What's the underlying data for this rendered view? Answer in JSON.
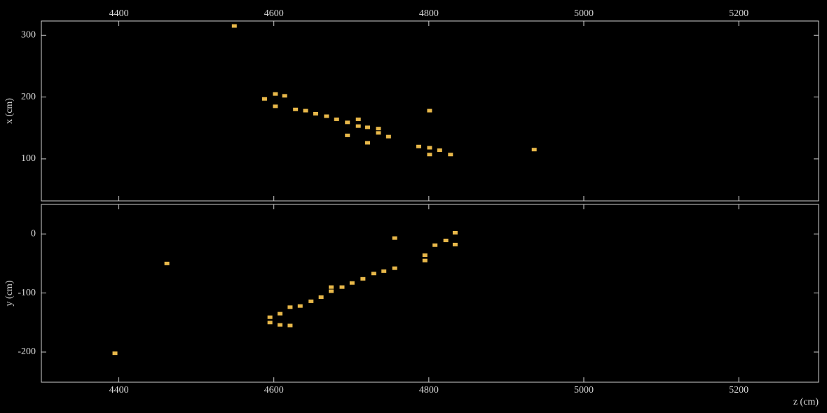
{
  "chart_data": [
    {
      "type": "scatter",
      "ylabel": "x (cm)",
      "xaxis_position": "top",
      "color": "#e8b84a",
      "x": [
        4549,
        4588,
        4602,
        4602,
        4614,
        4628,
        4641,
        4654,
        4668,
        4681,
        4695,
        4695,
        4709,
        4709,
        4721,
        4721,
        4735,
        4735,
        4748,
        4787,
        4801,
        4801,
        4801,
        4814,
        4828,
        4936
      ],
      "values": [
        315,
        197,
        205,
        185,
        202,
        180,
        178,
        173,
        169,
        164,
        159,
        138,
        153,
        164,
        151,
        126,
        149,
        142,
        136,
        120,
        118,
        107,
        178,
        114,
        107,
        115
      ],
      "xlim": [
        4300,
        5303
      ],
      "ylim": [
        32,
        323
      ],
      "xticks": [
        4400,
        4600,
        4800,
        5000,
        5200
      ],
      "yticks": [
        100,
        200,
        300
      ]
    },
    {
      "type": "scatter",
      "ylabel": "y (cm)",
      "xlabel": "z (cm)",
      "xaxis_position": "bottom",
      "color": "#e8b84a",
      "x": [
        4395,
        4462,
        4595,
        4595,
        4608,
        4608,
        4621,
        4621,
        4634,
        4648,
        4661,
        4674,
        4674,
        4688,
        4701,
        4715,
        4729,
        4742,
        4756,
        4756,
        4795,
        4795,
        4808,
        4822,
        4834,
        4834
      ],
      "values": [
        -202,
        -50,
        -141,
        -150,
        -135,
        -154,
        -155,
        -124,
        -122,
        -114,
        -107,
        -90,
        -97,
        -90,
        -83,
        -76,
        -67,
        -63,
        -7,
        -58,
        -36,
        -45,
        -19,
        -11,
        2,
        -18
      ],
      "xlim": [
        4300,
        5303
      ],
      "ylim": [
        -251,
        50
      ],
      "xticks": [
        4400,
        4600,
        4800,
        5000,
        5200
      ],
      "yticks": [
        -200,
        -100,
        0
      ]
    }
  ]
}
